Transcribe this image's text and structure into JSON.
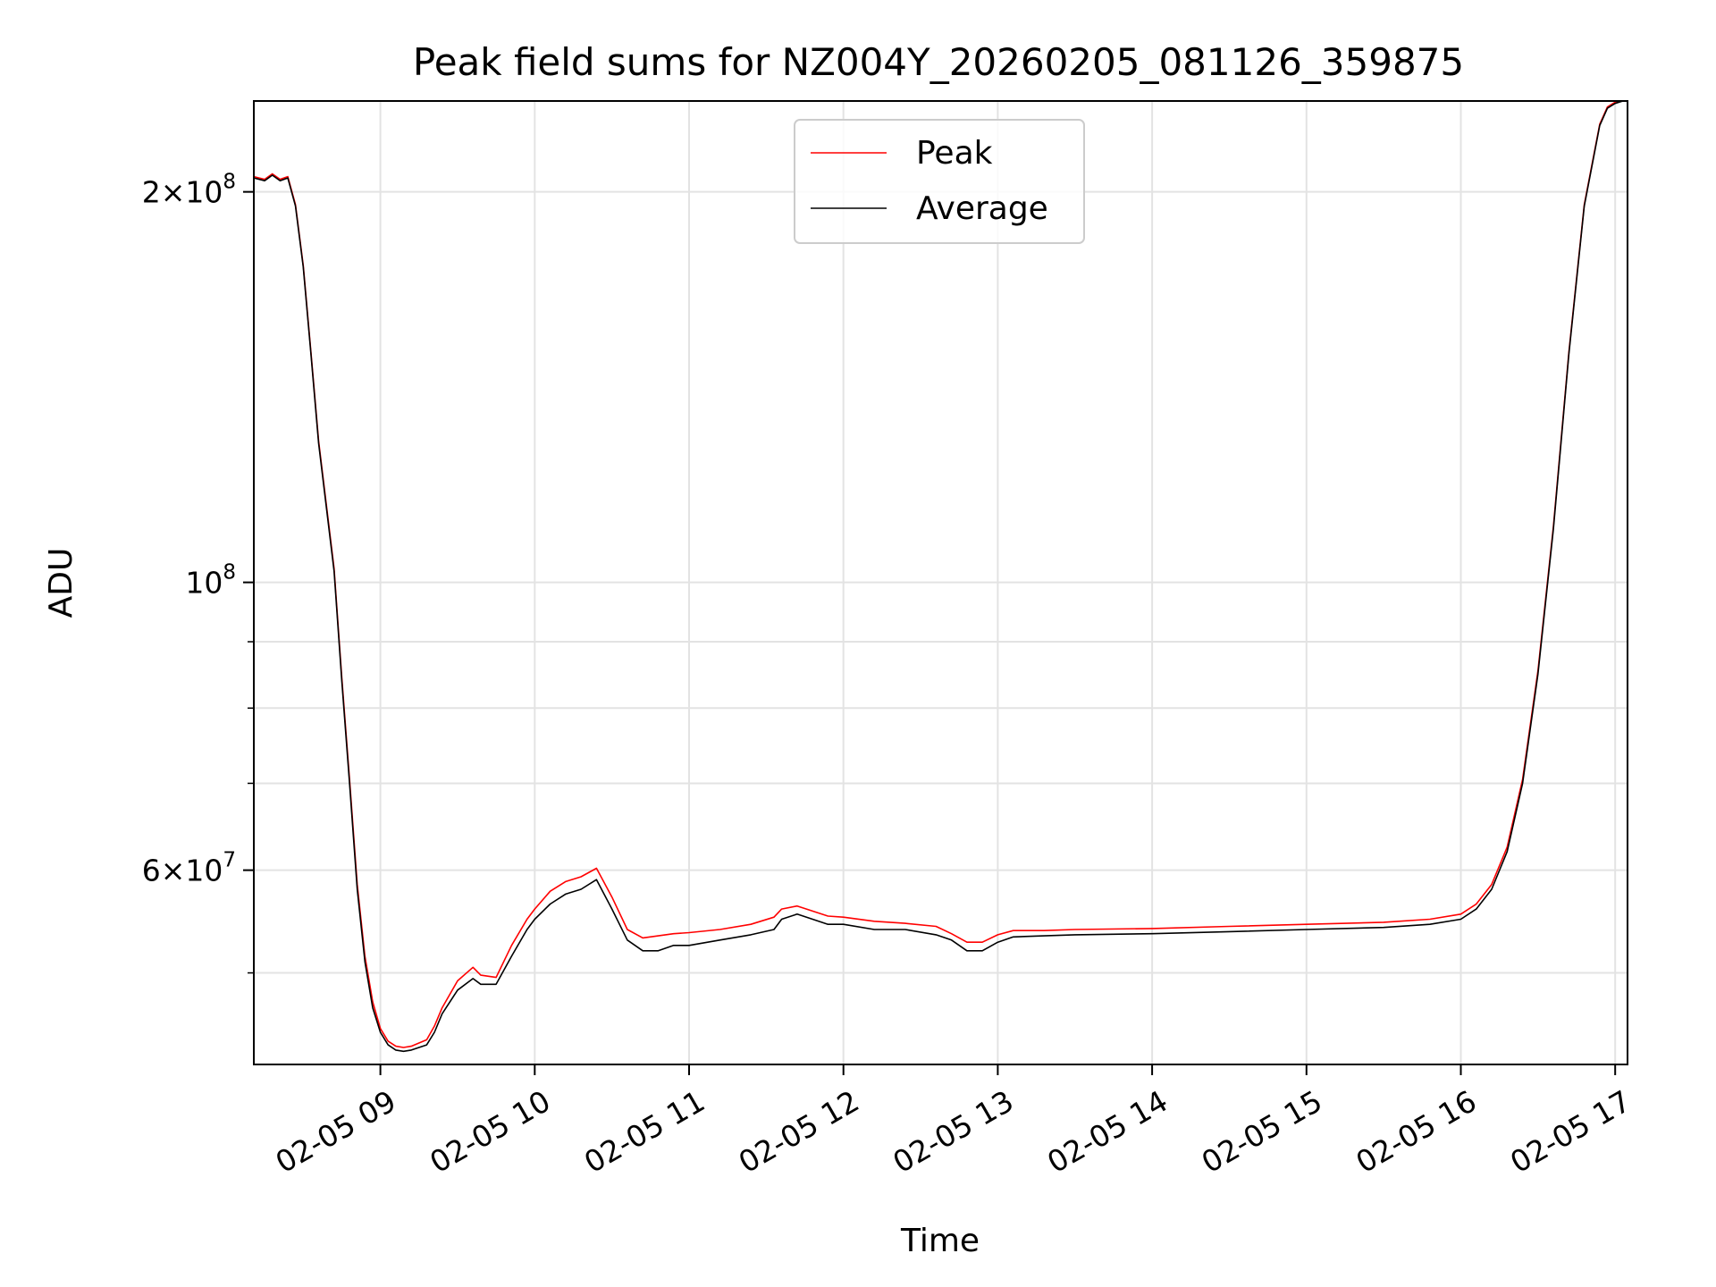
{
  "chart_data": {
    "type": "line",
    "title": "Peak field sums for NZ004Y_20260205_081126_359875",
    "xlabel": "Time",
    "ylabel": "ADU",
    "yscale": "log",
    "xlim_hours": [
      8.18,
      17.08
    ],
    "ylim": [
      42500000,
      235000000
    ],
    "grid": true,
    "x_ticks": [
      {
        "hour": 9,
        "label": "02-05 09"
      },
      {
        "hour": 10,
        "label": "02-05 10"
      },
      {
        "hour": 11,
        "label": "02-05 11"
      },
      {
        "hour": 12,
        "label": "02-05 12"
      },
      {
        "hour": 13,
        "label": "02-05 13"
      },
      {
        "hour": 14,
        "label": "02-05 14"
      },
      {
        "hour": 15,
        "label": "02-05 15"
      },
      {
        "hour": 16,
        "label": "02-05 16"
      },
      {
        "hour": 17,
        "label": "02-05 17"
      }
    ],
    "y_ticks_major": [
      {
        "value": 60000000,
        "mantissa": "6",
        "exponent": "7"
      },
      {
        "value": 100000000,
        "mantissa": "",
        "exponent": "8"
      },
      {
        "value": 200000000,
        "mantissa": "2",
        "exponent": "8"
      }
    ],
    "y_ticks_minor": [
      50000000,
      70000000,
      80000000,
      90000000
    ],
    "times_label_symbol": "×",
    "legend": {
      "position": "upper center",
      "entries": [
        {
          "label": "Peak",
          "color": "#ff0000"
        },
        {
          "label": "Average",
          "color": "#000000"
        }
      ]
    },
    "series": [
      {
        "name": "Average",
        "color": "#000000",
        "x_hours": [
          8.18,
          8.25,
          8.3,
          8.35,
          8.4,
          8.45,
          8.5,
          8.55,
          8.6,
          8.7,
          8.75,
          8.8,
          8.85,
          8.9,
          8.95,
          9.0,
          9.05,
          9.1,
          9.15,
          9.2,
          9.3,
          9.35,
          9.4,
          9.5,
          9.6,
          9.65,
          9.75,
          9.85,
          9.95,
          10.0,
          10.1,
          10.2,
          10.3,
          10.4,
          10.5,
          10.6,
          10.7,
          10.8,
          10.9,
          11.0,
          11.2,
          11.4,
          11.55,
          11.6,
          11.7,
          11.8,
          11.9,
          12.0,
          12.2,
          12.4,
          12.6,
          12.7,
          12.8,
          12.9,
          13.0,
          13.1,
          13.3,
          13.5,
          14.0,
          14.5,
          15.0,
          15.5,
          15.8,
          16.0,
          16.1,
          16.2,
          16.3,
          16.4,
          16.5,
          16.6,
          16.7,
          16.8,
          16.9,
          16.95,
          17.0,
          17.05,
          17.08
        ],
        "values": [
          205000000,
          204000000,
          206000000,
          204000000,
          205000000,
          195000000,
          175000000,
          150000000,
          128000000,
          102000000,
          84000000,
          70000000,
          58000000,
          51000000,
          47000000,
          45000000,
          44000000,
          43600000,
          43500000,
          43600000,
          44000000,
          45000000,
          46500000,
          48500000,
          49500000,
          49000000,
          49000000,
          51500000,
          54000000,
          55000000,
          56500000,
          57500000,
          58000000,
          59000000,
          56000000,
          53000000,
          52000000,
          52000000,
          52500000,
          52500000,
          53000000,
          53500000,
          54000000,
          55000000,
          55500000,
          55000000,
          54500000,
          54500000,
          54000000,
          54000000,
          53500000,
          53000000,
          52000000,
          52000000,
          52800000,
          53300000,
          53400000,
          53500000,
          53600000,
          53800000,
          54000000,
          54200000,
          54500000,
          55000000,
          56000000,
          58000000,
          62000000,
          70000000,
          85000000,
          110000000,
          150000000,
          195000000,
          225000000,
          232000000,
          234000000,
          235000000,
          235000000
        ]
      },
      {
        "name": "Peak",
        "color": "#ff0000",
        "x_hours": [
          8.18,
          8.25,
          8.3,
          8.35,
          8.4,
          8.45,
          8.5,
          8.55,
          8.6,
          8.7,
          8.75,
          8.8,
          8.85,
          8.9,
          8.95,
          9.0,
          9.05,
          9.1,
          9.15,
          9.2,
          9.3,
          9.35,
          9.4,
          9.5,
          9.6,
          9.65,
          9.75,
          9.85,
          9.95,
          10.0,
          10.1,
          10.2,
          10.3,
          10.4,
          10.5,
          10.6,
          10.7,
          10.8,
          10.9,
          11.0,
          11.2,
          11.4,
          11.55,
          11.6,
          11.7,
          11.8,
          11.9,
          12.0,
          12.2,
          12.4,
          12.6,
          12.7,
          12.8,
          12.9,
          13.0,
          13.1,
          13.3,
          13.5,
          14.0,
          14.5,
          15.0,
          15.5,
          15.8,
          16.0,
          16.1,
          16.2,
          16.3,
          16.4,
          16.5,
          16.6,
          16.7,
          16.8,
          16.9,
          16.95,
          17.0,
          17.05,
          17.08
        ],
        "values": [
          205500000,
          204500000,
          206500000,
          204500000,
          205500000,
          195500000,
          175500000,
          150500000,
          128500000,
          102500000,
          84500000,
          70500000,
          58500000,
          51500000,
          47500000,
          45300000,
          44300000,
          43900000,
          43800000,
          43900000,
          44400000,
          45500000,
          47000000,
          49300000,
          50500000,
          49800000,
          49600000,
          52500000,
          55000000,
          56000000,
          57800000,
          58800000,
          59300000,
          60200000,
          57200000,
          54000000,
          53200000,
          53400000,
          53600000,
          53700000,
          54000000,
          54500000,
          55200000,
          56000000,
          56300000,
          55800000,
          55300000,
          55200000,
          54800000,
          54600000,
          54300000,
          53600000,
          52800000,
          52800000,
          53500000,
          53900000,
          53900000,
          54000000,
          54100000,
          54300000,
          54500000,
          54700000,
          55000000,
          55500000,
          56500000,
          58500000,
          62500000,
          70500000,
          85500000,
          110500000,
          150500000,
          195500000,
          225500000,
          232500000,
          234500000,
          235000000,
          235000000
        ]
      }
    ]
  }
}
